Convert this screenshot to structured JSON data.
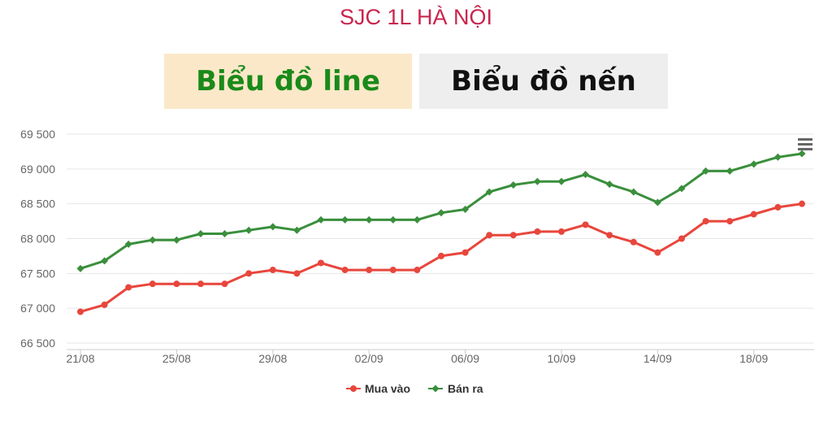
{
  "page": {
    "title": "SJC 1L HÀ NỘI"
  },
  "tabs": [
    {
      "label": "Biểu đồ line",
      "active": true
    },
    {
      "label": "Biểu đồ nến",
      "active": false
    }
  ],
  "colors": {
    "buy": "#e8463c",
    "sell": "#3a8f3c",
    "title": "#c9254d",
    "grid": "#e6e6e6"
  },
  "menu_icon": "hamburger-menu-icon",
  "chart_data": {
    "type": "line",
    "x": [
      "21/08",
      "22/08",
      "23/08",
      "24/08",
      "25/08",
      "26/08",
      "27/08",
      "28/08",
      "29/08",
      "30/08",
      "31/08",
      "01/09",
      "02/09",
      "03/09",
      "04/09",
      "05/09",
      "06/09",
      "07/09",
      "08/09",
      "09/09",
      "10/09",
      "11/09",
      "12/09",
      "13/09",
      "14/09",
      "15/09",
      "16/09",
      "17/09",
      "18/09",
      "19/09",
      "20/09"
    ],
    "x_tick_labels": [
      "21/08",
      "25/08",
      "29/08",
      "02/09",
      "06/09",
      "10/09",
      "14/09",
      "18/09"
    ],
    "x_tick_indices": [
      0,
      4,
      8,
      12,
      16,
      20,
      24,
      28
    ],
    "y_ticks": [
      "66 500",
      "67 000",
      "67 500",
      "68 000",
      "68 500",
      "69 000",
      "69 500"
    ],
    "ylim": [
      66500,
      69500
    ],
    "grid": true,
    "legend_position": "bottom-center",
    "series": [
      {
        "name": "Mua vào",
        "color": "#e8463c",
        "values": [
          66950,
          67050,
          67300,
          67350,
          67350,
          67350,
          67350,
          67500,
          67550,
          67500,
          67650,
          67550,
          67550,
          67550,
          67550,
          67750,
          67800,
          68050,
          68050,
          68100,
          68100,
          68200,
          68050,
          67950,
          67800,
          68000,
          68250,
          68250,
          68350,
          68450,
          68500
        ]
      },
      {
        "name": "Bán ra",
        "color": "#3a8f3c",
        "values": [
          67570,
          67680,
          67920,
          67980,
          67980,
          68070,
          68070,
          68120,
          68170,
          68120,
          68270,
          68270,
          68270,
          68270,
          68270,
          68370,
          68420,
          68670,
          68770,
          68820,
          68820,
          68920,
          68780,
          68670,
          68520,
          68720,
          68970,
          68970,
          69070,
          69170,
          69220
        ]
      }
    ]
  }
}
